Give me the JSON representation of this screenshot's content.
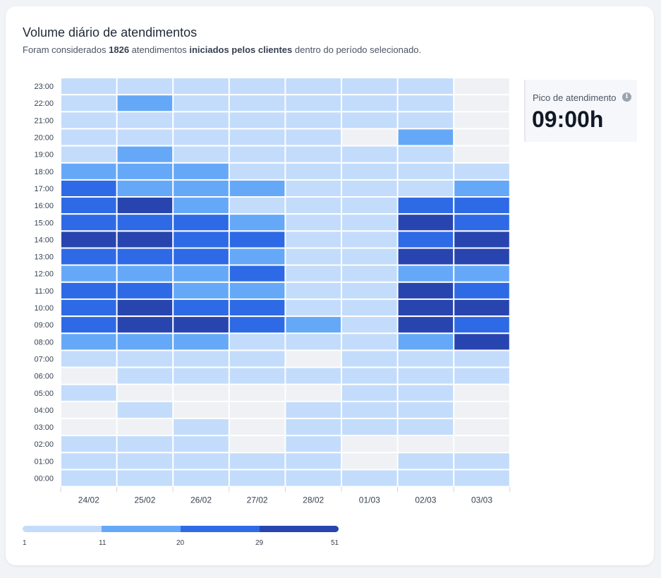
{
  "header": {
    "title": "Volume diário de atendimentos",
    "subtitle_prefix": "Foram considerados ",
    "subtitle_count": "1826",
    "subtitle_mid": " atendimentos ",
    "subtitle_bold": "iniciados pelos clientes",
    "subtitle_suffix": " dentro do período selecionado."
  },
  "peak": {
    "label": "Pico de atendimento",
    "value": "09:00h",
    "info_icon": "info-icon"
  },
  "legend": {
    "labels": [
      "1",
      "11",
      "20",
      "29",
      "51"
    ],
    "colors": [
      "#c3dcfb",
      "#66a8f8",
      "#2e6ae6",
      "#2845af"
    ]
  },
  "chart_data": {
    "type": "heatmap",
    "x": [
      "24/02",
      "25/02",
      "26/02",
      "27/02",
      "28/02",
      "01/03",
      "02/03",
      "03/03"
    ],
    "y": [
      "23:00",
      "22:00",
      "21:00",
      "20:00",
      "19:00",
      "18:00",
      "17:00",
      "16:00",
      "15:00",
      "14:00",
      "13:00",
      "12:00",
      "11:00",
      "10:00",
      "09:00",
      "08:00",
      "07:00",
      "06:00",
      "05:00",
      "04:00",
      "03:00",
      "02:00",
      "01:00",
      "00:00"
    ],
    "bins": [
      1,
      11,
      20,
      29,
      51
    ],
    "empty_color": "#eff1f4",
    "levels": [
      [
        1,
        1,
        1,
        1,
        1,
        1,
        1,
        0
      ],
      [
        1,
        2,
        1,
        1,
        1,
        1,
        1,
        0
      ],
      [
        1,
        1,
        1,
        1,
        1,
        1,
        1,
        0
      ],
      [
        1,
        1,
        1,
        1,
        1,
        0,
        2,
        0
      ],
      [
        1,
        2,
        1,
        1,
        1,
        1,
        1,
        0
      ],
      [
        2,
        2,
        2,
        1,
        1,
        1,
        1,
        1
      ],
      [
        3,
        2,
        2,
        2,
        1,
        1,
        1,
        2
      ],
      [
        3,
        4,
        2,
        1,
        1,
        1,
        3,
        3
      ],
      [
        3,
        3,
        3,
        2,
        1,
        1,
        4,
        3
      ],
      [
        4,
        4,
        3,
        3,
        1,
        1,
        3,
        4
      ],
      [
        3,
        3,
        3,
        2,
        1,
        1,
        4,
        4
      ],
      [
        2,
        2,
        2,
        3,
        1,
        1,
        2,
        2
      ],
      [
        3,
        3,
        2,
        2,
        1,
        1,
        4,
        3
      ],
      [
        3,
        4,
        3,
        3,
        1,
        1,
        4,
        4
      ],
      [
        3,
        4,
        4,
        3,
        2,
        1,
        4,
        3
      ],
      [
        2,
        2,
        2,
        1,
        1,
        1,
        2,
        4
      ],
      [
        1,
        1,
        1,
        1,
        0,
        1,
        1,
        1
      ],
      [
        0,
        1,
        1,
        1,
        1,
        1,
        1,
        1
      ],
      [
        1,
        0,
        0,
        0,
        0,
        1,
        1,
        0
      ],
      [
        0,
        1,
        0,
        0,
        1,
        1,
        1,
        0
      ],
      [
        0,
        0,
        1,
        0,
        1,
        1,
        1,
        0
      ],
      [
        1,
        1,
        1,
        0,
        1,
        0,
        0,
        0
      ],
      [
        1,
        1,
        1,
        1,
        1,
        0,
        1,
        1
      ],
      [
        1,
        1,
        1,
        1,
        1,
        1,
        1,
        1
      ]
    ]
  }
}
